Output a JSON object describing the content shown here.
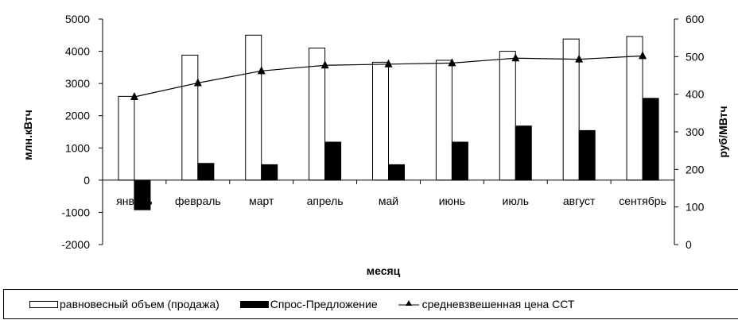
{
  "chart_data": {
    "type": "bar",
    "title": "",
    "xlabel": "месяц",
    "ylabel_left": "млн.кВтч",
    "ylabel_right": "руб/МВтч",
    "ylim_left": [
      -2000,
      5000
    ],
    "ylim_right": [
      0,
      600
    ],
    "yticks_left": [
      "5000",
      "4000",
      "3000",
      "2000",
      "1000",
      "0",
      "-1000",
      "-2000"
    ],
    "yticks_right": [
      "600",
      "500",
      "400",
      "300",
      "200",
      "100",
      "0"
    ],
    "grid": false,
    "legend_position": "bottom",
    "categories": [
      "январь",
      "февраль",
      "март",
      "апрель",
      "май",
      "июнь",
      "июль",
      "август",
      "сентябрь"
    ],
    "series": [
      {
        "name": "равновесный объем (продажа)",
        "kind": "bar",
        "axis": "left",
        "fill": "#ffffff",
        "values": [
          2600,
          3880,
          4500,
          4100,
          3660,
          3720,
          4000,
          4380,
          4460
        ]
      },
      {
        "name": "Спрос-Предложение",
        "kind": "bar",
        "axis": "left",
        "fill": "#000000",
        "values": [
          -920,
          520,
          480,
          1180,
          480,
          1180,
          1680,
          1540,
          2540
        ]
      },
      {
        "name": "средневзвешенная цена ССТ",
        "kind": "line",
        "axis": "right",
        "marker": "triangle",
        "color": "#000000",
        "values": [
          393,
          430,
          462,
          477,
          480,
          483,
          496,
          493,
          502
        ]
      }
    ]
  }
}
